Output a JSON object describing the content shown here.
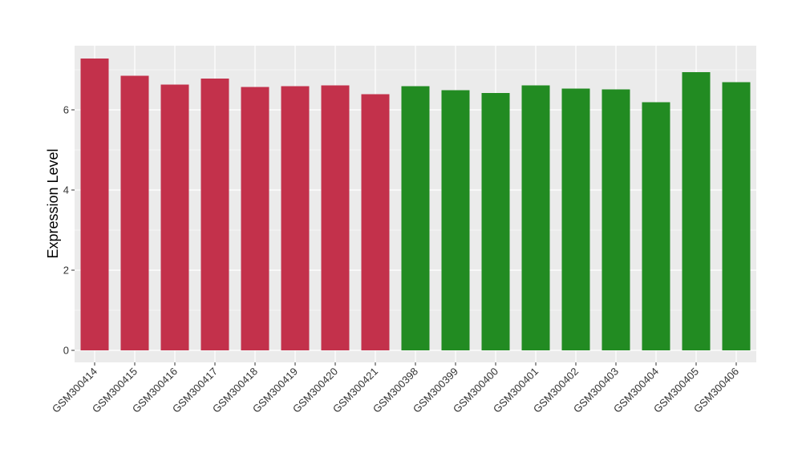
{
  "chart_data": {
    "type": "bar",
    "ylabel": "Expression Level",
    "xlabel": "",
    "ylim": [
      -0.3,
      7.6
    ],
    "yticks": [
      0,
      2,
      4,
      6
    ],
    "categories": [
      "GSM300414",
      "GSM300415",
      "GSM300416",
      "GSM300417",
      "GSM300418",
      "GSM300419",
      "GSM300420",
      "GSM300421",
      "GSM300398",
      "GSM300399",
      "GSM300400",
      "GSM300401",
      "GSM300402",
      "GSM300403",
      "GSM300404",
      "GSM300405",
      "GSM300406"
    ],
    "values": [
      7.28,
      6.85,
      6.63,
      6.78,
      6.57,
      6.59,
      6.61,
      6.39,
      6.59,
      6.49,
      6.42,
      6.61,
      6.53,
      6.51,
      6.19,
      6.94,
      6.69
    ],
    "groups": [
      0,
      0,
      0,
      0,
      0,
      0,
      0,
      0,
      1,
      1,
      1,
      1,
      1,
      1,
      1,
      1,
      1
    ],
    "group_colors": [
      "#c3314b",
      "#228b22"
    ],
    "panel_background": "#ebebeb",
    "gridline_color": "#ffffff",
    "grid": true
  }
}
